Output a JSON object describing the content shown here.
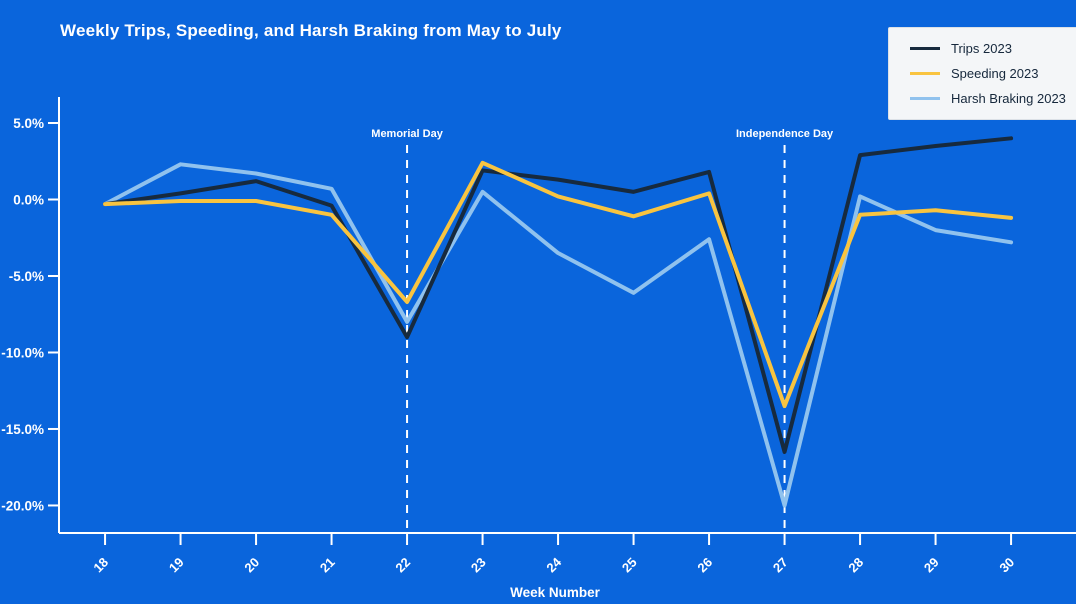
{
  "header": {
    "title": "Weekly Trips, Speeding, and Harsh Braking from May to July"
  },
  "colors": {
    "background": "#0a65dc",
    "title_text": "#ffffff",
    "axis": "#ffffff",
    "tick_text": "#ffffff",
    "annotation_text": "#ffffff",
    "legend_background": "#f4f6f8",
    "legend_border": "#dce1e7",
    "legend_text": "#16283c",
    "trips": "#172a3e",
    "speeding": "#f9c440",
    "harsh_braking": "#90c2ee"
  },
  "chart_data": {
    "type": "line",
    "title": "Weekly Trips, Speeding, and Harsh Braking from May to July",
    "xlabel": "Week Number",
    "ylabel": "",
    "unit": "percent",
    "grid": false,
    "legend_position": "upper right",
    "x": [
      18,
      19,
      20,
      21,
      22,
      23,
      24,
      25,
      26,
      27,
      28,
      29,
      30
    ],
    "x_tick_labels": [
      "18",
      "19",
      "20",
      "21",
      "22",
      "23",
      "24",
      "25",
      "26",
      "27",
      "28",
      "29",
      "30"
    ],
    "y_ticks": [
      {
        "value": 5,
        "label": "5.0%"
      },
      {
        "value": 0,
        "label": "0.0%"
      },
      {
        "value": -5,
        "label": "-5.0%"
      },
      {
        "value": -10,
        "label": "-10.0%"
      },
      {
        "value": -15,
        "label": "-15.0%"
      },
      {
        "value": -20,
        "label": "-20.0%"
      }
    ],
    "xlim": [
      17.39,
      30.86
    ],
    "ylim": [
      -21.8,
      6.7
    ],
    "series": [
      {
        "name": "Trips 2023",
        "color": "#172a3e",
        "values": [
          -0.3,
          0.4,
          1.2,
          -0.4,
          -9.0,
          1.9,
          1.3,
          0.5,
          1.8,
          -16.5,
          2.9,
          3.5,
          4.0
        ]
      },
      {
        "name": "Speeding 2023",
        "color": "#f9c440",
        "values": [
          -0.3,
          -0.1,
          -0.1,
          -1.0,
          -6.7,
          2.4,
          0.2,
          -1.1,
          0.4,
          -13.5,
          -1.0,
          -0.7,
          -1.2
        ]
      },
      {
        "name": "Harsh Braking 2023",
        "color": "#90c2ee",
        "values": [
          -0.3,
          2.3,
          1.7,
          0.7,
          -8.0,
          0.5,
          -3.5,
          -6.1,
          -2.6,
          -20.0,
          0.2,
          -2.0,
          -2.8
        ]
      }
    ],
    "draw_order": [
      2,
      0,
      1
    ],
    "annotations": [
      {
        "label": "Memorial Day",
        "x": 22
      },
      {
        "label": "Independence Day",
        "x": 27
      }
    ]
  }
}
